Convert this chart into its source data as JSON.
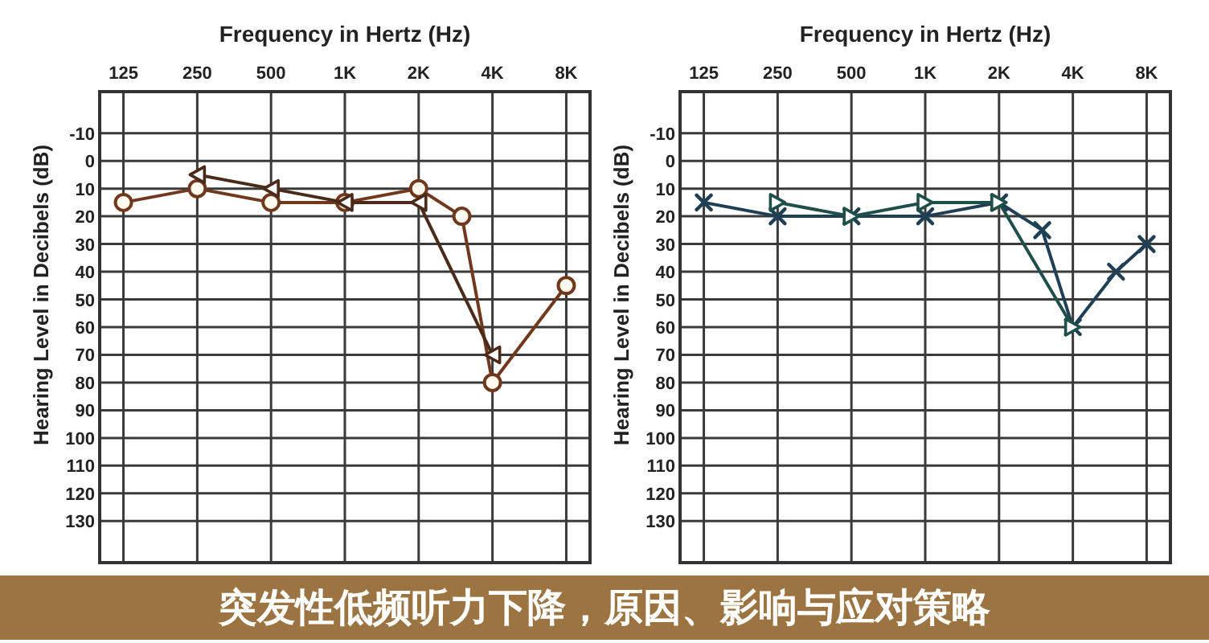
{
  "chart_data": [
    {
      "type": "line",
      "xlabel": "Frequency in Hertz (Hz)",
      "ylabel": "Hearing Level in Decibels (dB)",
      "log": "x",
      "xlim": [
        100,
        10000
      ],
      "xticks": [
        125,
        250,
        500,
        {
          "value": 1000,
          "label": "1K"
        },
        {
          "value": 2000,
          "label": "2K"
        },
        {
          "value": 4000,
          "label": "4K"
        },
        {
          "value": 8000,
          "label": "8K"
        }
      ],
      "ylim": [
        145,
        -25
      ],
      "yticks": [
        -10,
        0,
        10,
        20,
        30,
        40,
        50,
        60,
        70,
        80,
        90,
        100,
        110,
        120,
        130
      ],
      "grid": true,
      "series": [
        {
          "color": "#70381c",
          "marker": "circle",
          "x": [
            125,
            250,
            500,
            1000,
            2000,
            3000,
            4000,
            8000
          ],
          "values": [
            15,
            10,
            15,
            15,
            10,
            20,
            80,
            45
          ]
        },
        {
          "color": "#4a2a18",
          "marker": "triangle",
          "x": [
            250,
            500,
            1000,
            2000,
            4000
          ],
          "values": [
            5,
            10,
            15,
            15,
            70
          ]
        }
      ]
    },
    {
      "type": "line",
      "xlabel": "Frequency in Hertz (Hz)",
      "ylabel": "Hearing Level in Decibels (dB)",
      "log": "x",
      "xlim": [
        100,
        10000
      ],
      "xticks": [
        125,
        250,
        500,
        {
          "value": 1000,
          "label": "1K"
        },
        {
          "value": 2000,
          "label": "2K"
        },
        {
          "value": 4000,
          "label": "4K"
        },
        {
          "value": 8000,
          "label": "8K"
        }
      ],
      "ylim": [
        145,
        -25
      ],
      "yticks": [
        -10,
        0,
        10,
        20,
        30,
        40,
        50,
        60,
        70,
        80,
        90,
        100,
        110,
        120,
        130
      ],
      "grid": true,
      "series": [
        {
          "color": "#1f3f55",
          "marker": "cross",
          "x": [
            125,
            250,
            500,
            1000,
            2000,
            3000,
            4000,
            6000,
            8000
          ],
          "values": [
            15,
            20,
            20,
            20,
            15,
            25,
            60,
            40,
            30
          ]
        },
        {
          "color": "#1e4f48",
          "marker": "triangle",
          "x": [
            250,
            500,
            1000,
            2000,
            4000
          ],
          "values": [
            15,
            20,
            15,
            15,
            60
          ]
        }
      ]
    },
    {
      "type": "other",
      "title": "突发性低频听力下降，原因、影响与应对策略"
    }
  ]
}
